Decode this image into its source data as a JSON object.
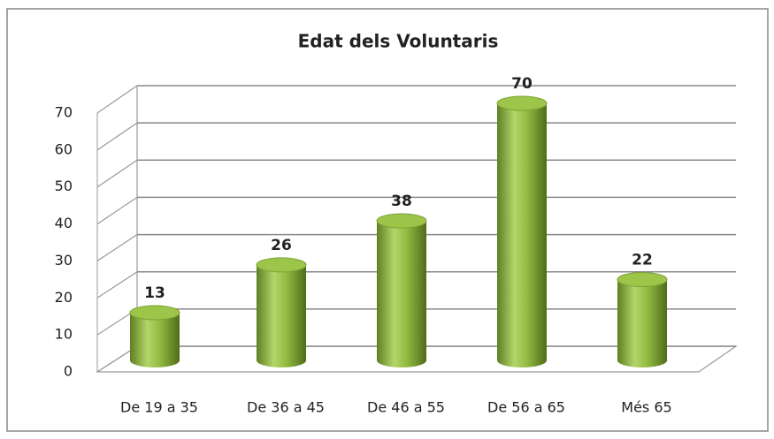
{
  "chart_data": {
    "type": "bar3d",
    "title": "Edat dels Voluntaris",
    "categories": [
      "De 19 a 35",
      "De 36 a 45",
      "De 46 a 55",
      "De 56 a 65",
      "Més 65"
    ],
    "values": [
      13,
      26,
      38,
      70,
      22
    ],
    "color": "#8fb83c",
    "ylim": [
      0,
      70
    ],
    "yticks": [
      0,
      10,
      20,
      30,
      40,
      50,
      60,
      70
    ],
    "grid": true
  }
}
